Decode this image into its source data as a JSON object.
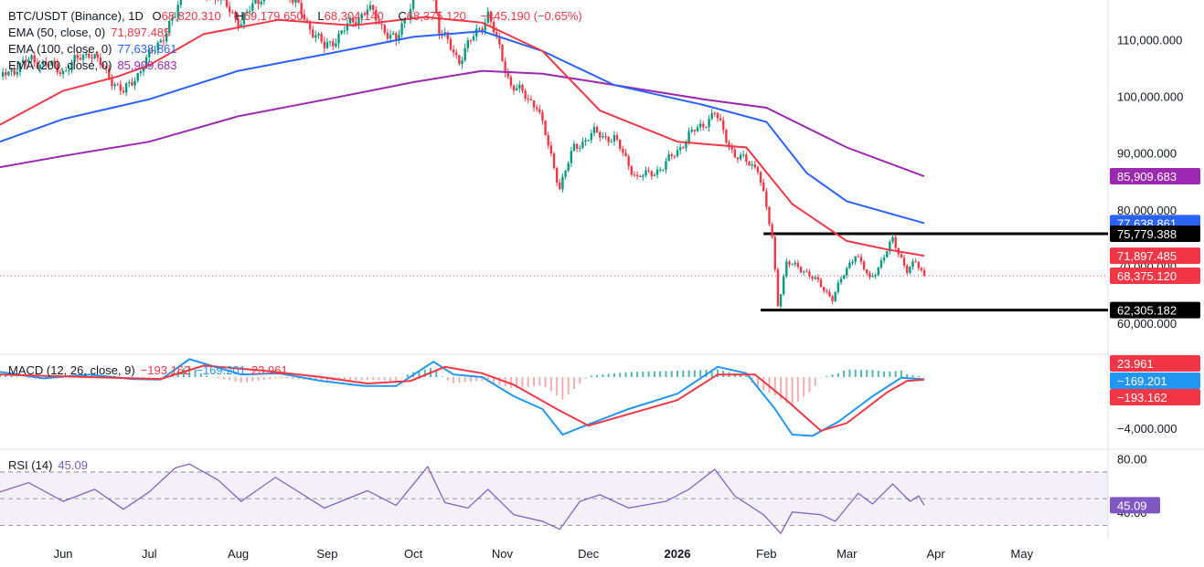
{
  "header": {
    "symbol": "BTC/USDT (Binance), 1D",
    "o_label": "O",
    "open": "68,820.310",
    "h_label": "H",
    "high": "69,179.650",
    "l_label": "L",
    "low": "68,304.140",
    "c_label": "C",
    "close": "68,375.120",
    "change": "−445.190 (−0.65%)"
  },
  "legends": {
    "ema50": {
      "label": "EMA (50, close, 0)",
      "value": "71,897.485"
    },
    "ema100": {
      "label": "EMA (100, close, 0)",
      "value": "77,638.861"
    },
    "ema200": {
      "label": "EMA (200, close, 0)",
      "value": "85,909.683"
    },
    "macd": {
      "label": "MACD (12, 26, close, 9)",
      "v1": "−193.162",
      "v2": "−169.201",
      "v3": "23.961"
    },
    "rsi": {
      "label": "RSI (14)",
      "value": "45.09"
    }
  },
  "colors": {
    "up": "#089981",
    "down": "#f23645",
    "ema50": "#f23645",
    "ema100": "#2962ff",
    "ema200": "#9c27b0",
    "macd": "#2196f3",
    "signal": "#f23645",
    "rsi": "#7e57c2",
    "level": "#000000"
  },
  "chart_data": [
    {
      "type": "candlestick",
      "title": "BTC/USDT (Binance), 1D",
      "x_range": [
        "2025-05-10",
        "2026-05-31"
      ],
      "y_range": [
        55000,
        117000
      ],
      "price_ticks": [
        "110,000.000",
        "100,000.000",
        "90,000.000",
        "80,000.000",
        "70,000.000",
        "60,000.000"
      ],
      "price_tick_values": [
        110000,
        100000,
        90000,
        80000,
        70000,
        60000
      ],
      "month_labels": [
        "Jun",
        "Jul",
        "Aug",
        "Sep",
        "Oct",
        "Nov",
        "Dec",
        "2026",
        "Feb",
        "Mar",
        "Apr",
        "May"
      ],
      "month_dates": [
        "2025-06-01",
        "2025-07-01",
        "2025-08-01",
        "2025-09-01",
        "2025-10-01",
        "2025-11-01",
        "2025-12-01",
        "2026-01-01",
        "2026-02-01",
        "2026-03-01",
        "2026-04-01",
        "2026-05-01"
      ],
      "close_path": [
        [
          "2025-05-10",
          103500
        ],
        [
          "2025-05-21",
          106500
        ],
        [
          "2025-06-01",
          104500
        ],
        [
          "2025-06-10",
          108000
        ],
        [
          "2025-06-22",
          100500
        ],
        [
          "2025-07-01",
          107000
        ],
        [
          "2025-07-10",
          114000
        ],
        [
          "2025-07-14",
          120500
        ],
        [
          "2025-07-25",
          117500
        ],
        [
          "2025-08-02",
          113000
        ],
        [
          "2025-08-14",
          121500
        ],
        [
          "2025-08-31",
          108500
        ],
        [
          "2025-09-15",
          115500
        ],
        [
          "2025-09-25",
          109500
        ],
        [
          "2025-10-06",
          124500
        ],
        [
          "2025-10-10",
          111500
        ],
        [
          "2025-10-17",
          106500
        ],
        [
          "2025-10-27",
          114500
        ],
        [
          "2025-11-04",
          102000
        ],
        [
          "2025-11-13",
          98500
        ],
        [
          "2025-11-21",
          84000
        ],
        [
          "2025-11-26",
          91000
        ],
        [
          "2025-12-03",
          93500
        ],
        [
          "2025-12-10",
          92500
        ],
        [
          "2025-12-18",
          85500
        ],
        [
          "2025-12-27",
          87500
        ],
        [
          "2026-01-05",
          93000
        ],
        [
          "2026-01-14",
          97000
        ],
        [
          "2026-01-21",
          89500
        ],
        [
          "2026-01-29",
          87500
        ],
        [
          "2026-02-03",
          75000
        ],
        [
          "2026-02-05",
          63500
        ],
        [
          "2026-02-08",
          70500
        ],
        [
          "2026-02-14",
          69500
        ],
        [
          "2026-02-24",
          64500
        ],
        [
          "2026-03-04",
          72500
        ],
        [
          "2026-03-09",
          67500
        ],
        [
          "2026-03-17",
          74500
        ],
        [
          "2026-03-22",
          69500
        ],
        [
          "2026-03-25",
          70500
        ],
        [
          "2026-03-28",
          68375
        ]
      ],
      "ema50": {
        "name": "EMA (50, close, 0)",
        "last": 71897.485,
        "path": [
          [
            "2025-05-10",
            95000
          ],
          [
            "2025-06-01",
            101000
          ],
          [
            "2025-06-20",
            103500
          ],
          [
            "2025-07-01",
            105500
          ],
          [
            "2025-07-20",
            111000
          ],
          [
            "2025-08-15",
            113500
          ],
          [
            "2025-09-10",
            112500
          ],
          [
            "2025-10-05",
            114000
          ],
          [
            "2025-10-25",
            113000
          ],
          [
            "2025-11-15",
            108000
          ],
          [
            "2025-12-05",
            97500
          ],
          [
            "2026-01-01",
            92000
          ],
          [
            "2026-01-25",
            91000
          ],
          [
            "2026-02-10",
            81000
          ],
          [
            "2026-03-01",
            74500
          ],
          [
            "2026-03-15",
            73000
          ],
          [
            "2026-03-28",
            71897
          ]
        ]
      },
      "ema100": {
        "name": "EMA (100, close, 0)",
        "last": 77638.861,
        "path": [
          [
            "2025-05-10",
            92000
          ],
          [
            "2025-06-01",
            96000
          ],
          [
            "2025-07-01",
            99500
          ],
          [
            "2025-08-01",
            104500
          ],
          [
            "2025-09-01",
            107500
          ],
          [
            "2025-10-01",
            110500
          ],
          [
            "2025-10-25",
            111500
          ],
          [
            "2025-11-15",
            108000
          ],
          [
            "2025-12-10",
            102000
          ],
          [
            "2026-01-10",
            98500
          ],
          [
            "2026-02-01",
            95500
          ],
          [
            "2026-02-15",
            86500
          ],
          [
            "2026-03-01",
            81500
          ],
          [
            "2026-03-28",
            77638
          ]
        ]
      },
      "ema200": {
        "name": "EMA (200, close, 0)",
        "last": 85909.683,
        "path": [
          [
            "2025-05-10",
            87500
          ],
          [
            "2025-06-01",
            89500
          ],
          [
            "2025-07-01",
            92000
          ],
          [
            "2025-08-01",
            96500
          ],
          [
            "2025-09-01",
            99500
          ],
          [
            "2025-10-01",
            102500
          ],
          [
            "2025-10-25",
            104500
          ],
          [
            "2025-11-15",
            104000
          ],
          [
            "2025-12-10",
            102000
          ],
          [
            "2026-01-10",
            99500
          ],
          [
            "2026-02-01",
            98000
          ],
          [
            "2026-03-01",
            91000
          ],
          [
            "2026-03-28",
            85910
          ]
        ]
      },
      "price_labels": [
        {
          "text": "85,909.683",
          "value": 85909.683,
          "color": "#9c27b0"
        },
        {
          "text": "77,638.861",
          "value": 77638.861,
          "color": "#2962ff"
        },
        {
          "text": "75,779.388",
          "value": 75779.388,
          "color": "#000000"
        },
        {
          "text": "71,897.485",
          "value": 71897.485,
          "color": "#f23645"
        },
        {
          "text": "68,375.120",
          "value": 68375.12,
          "color": "#f23645"
        },
        {
          "text": "62,305.182",
          "value": 62305.182,
          "color": "#000000"
        }
      ],
      "horizontal_lines": [
        {
          "value": 75779.388,
          "from": "2026-01-31",
          "to": "2026-05-31"
        },
        {
          "value": 62305.182,
          "from": "2026-01-30",
          "to": "2026-05-31"
        }
      ],
      "last_price": 68375.12
    },
    {
      "type": "macd",
      "title": "MACD (12, 26, close, 9)",
      "y_range": [
        -5500,
        1500
      ],
      "tick_labels": [
        "−4,000.000"
      ],
      "tick_values": [
        -4000
      ],
      "macd": {
        "last": -169.201,
        "path": [
          [
            "2025-05-10",
            400
          ],
          [
            "2025-05-25",
            -100
          ],
          [
            "2025-06-10",
            200
          ],
          [
            "2025-06-25",
            -150
          ],
          [
            "2025-07-05",
            -200
          ],
          [
            "2025-07-15",
            1400
          ],
          [
            "2025-08-02",
            200
          ],
          [
            "2025-08-15",
            300
          ],
          [
            "2025-08-30",
            -300
          ],
          [
            "2025-09-14",
            -700
          ],
          [
            "2025-09-25",
            -700
          ],
          [
            "2025-10-08",
            1200
          ],
          [
            "2025-10-15",
            200
          ],
          [
            "2025-10-25",
            0
          ],
          [
            "2025-11-05",
            -1500
          ],
          [
            "2025-11-15",
            -2500
          ],
          [
            "2025-11-22",
            -4500
          ],
          [
            "2025-12-01",
            -3700
          ],
          [
            "2025-12-15",
            -2500
          ],
          [
            "2026-01-01",
            -1300
          ],
          [
            "2026-01-15",
            800
          ],
          [
            "2026-01-25",
            300
          ],
          [
            "2026-02-04",
            -2500
          ],
          [
            "2026-02-10",
            -4500
          ],
          [
            "2026-02-17",
            -4600
          ],
          [
            "2026-02-26",
            -3500
          ],
          [
            "2026-03-10",
            -1500
          ],
          [
            "2026-03-20",
            -50
          ],
          [
            "2026-03-28",
            -169
          ]
        ]
      },
      "signal": {
        "last": -193.162,
        "path": [
          [
            "2025-05-10",
            200
          ],
          [
            "2025-05-25",
            100
          ],
          [
            "2025-06-10",
            0
          ],
          [
            "2025-06-25",
            -100
          ],
          [
            "2025-07-05",
            -150
          ],
          [
            "2025-07-20",
            900
          ],
          [
            "2025-08-10",
            500
          ],
          [
            "2025-08-30",
            0
          ],
          [
            "2025-09-15",
            -500
          ],
          [
            "2025-09-30",
            -300
          ],
          [
            "2025-10-12",
            800
          ],
          [
            "2025-10-25",
            300
          ],
          [
            "2025-11-05",
            -600
          ],
          [
            "2025-11-20",
            -2500
          ],
          [
            "2025-12-01",
            -3800
          ],
          [
            "2025-12-15",
            -2900
          ],
          [
            "2026-01-01",
            -1800
          ],
          [
            "2026-01-15",
            200
          ],
          [
            "2026-01-28",
            200
          ],
          [
            "2026-02-08",
            -1800
          ],
          [
            "2026-02-20",
            -4200
          ],
          [
            "2026-03-01",
            -3600
          ],
          [
            "2026-03-15",
            -1200
          ],
          [
            "2026-03-22",
            -300
          ],
          [
            "2026-03-28",
            -193
          ]
        ]
      },
      "histogram_last": 23.961,
      "value_labels": [
        {
          "text": "23.961",
          "color": "#f23645"
        },
        {
          "text": "−169.201",
          "color": "#2196f3"
        },
        {
          "text": "−193.162",
          "color": "#f23645"
        }
      ]
    },
    {
      "type": "line",
      "title": "RSI (14)",
      "y_range": [
        20,
        85
      ],
      "bands": [
        70,
        50,
        30
      ],
      "tick_labels": [
        "80.00",
        "40.00"
      ],
      "tick_values": [
        80,
        40
      ],
      "rsi": {
        "last": 45.09,
        "path": [
          [
            "2025-05-10",
            55
          ],
          [
            "2025-05-20",
            62
          ],
          [
            "2025-06-01",
            48
          ],
          [
            "2025-06-12",
            57
          ],
          [
            "2025-06-22",
            42
          ],
          [
            "2025-07-01",
            55
          ],
          [
            "2025-07-10",
            73
          ],
          [
            "2025-07-15",
            76
          ],
          [
            "2025-07-25",
            64
          ],
          [
            "2025-08-02",
            48
          ],
          [
            "2025-08-14",
            66
          ],
          [
            "2025-08-31",
            43
          ],
          [
            "2025-09-15",
            56
          ],
          [
            "2025-09-25",
            45
          ],
          [
            "2025-10-06",
            74
          ],
          [
            "2025-10-12",
            47
          ],
          [
            "2025-10-20",
            43
          ],
          [
            "2025-10-27",
            57
          ],
          [
            "2025-11-05",
            38
          ],
          [
            "2025-11-15",
            33
          ],
          [
            "2025-11-21",
            27
          ],
          [
            "2025-11-28",
            48
          ],
          [
            "2025-12-05",
            53
          ],
          [
            "2025-12-15",
            43
          ],
          [
            "2025-12-28",
            48
          ],
          [
            "2026-01-05",
            57
          ],
          [
            "2026-01-14",
            72
          ],
          [
            "2026-01-21",
            52
          ],
          [
            "2026-01-31",
            38
          ],
          [
            "2026-02-06",
            24
          ],
          [
            "2026-02-10",
            40
          ],
          [
            "2026-02-20",
            38
          ],
          [
            "2026-02-25",
            33
          ],
          [
            "2026-03-05",
            54
          ],
          [
            "2026-03-10",
            46
          ],
          [
            "2026-03-17",
            61
          ],
          [
            "2026-03-23",
            48
          ],
          [
            "2026-03-26",
            52
          ],
          [
            "2026-03-28",
            45.09
          ]
        ]
      },
      "value_label": {
        "text": "45.09",
        "color": "#7e57c2"
      }
    }
  ]
}
